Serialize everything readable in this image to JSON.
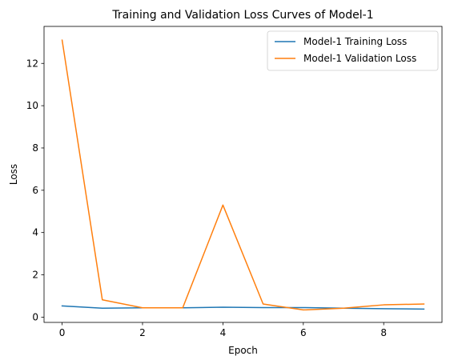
{
  "chart_data": {
    "type": "line",
    "title": "Training and Validation Loss Curves of Model-1",
    "xlabel": "Epoch",
    "ylabel": "Loss",
    "x": [
      0,
      1,
      2,
      3,
      4,
      5,
      6,
      7,
      8,
      9
    ],
    "xlim": [
      -0.45,
      9.45
    ],
    "ylim": [
      -0.25,
      13.75
    ],
    "xticks": [
      0,
      2,
      4,
      6,
      8
    ],
    "yticks": [
      0,
      2,
      4,
      6,
      8,
      10,
      12
    ],
    "grid": false,
    "legend_position": "top-right",
    "series": [
      {
        "name": "Model-1 Training Loss",
        "color": "#1f77b4",
        "values": [
          0.53,
          0.42,
          0.44,
          0.44,
          0.47,
          0.45,
          0.45,
          0.42,
          0.4,
          0.38
        ]
      },
      {
        "name": "Model-1 Validation Loss",
        "color": "#ff7f0e",
        "values": [
          13.1,
          0.82,
          0.44,
          0.44,
          5.3,
          0.62,
          0.34,
          0.42,
          0.58,
          0.62
        ]
      }
    ]
  }
}
